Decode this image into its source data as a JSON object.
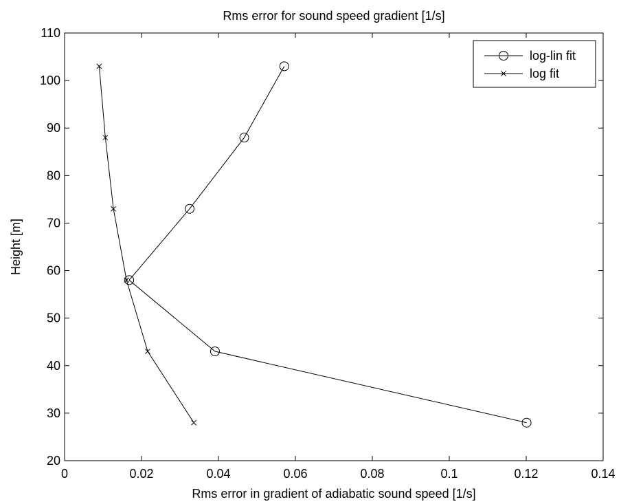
{
  "chart_data": {
    "type": "line",
    "title": "Rms error for sound speed gradient [1/s]",
    "xlabel": "Rms error in gradient of adiabatic sound speed [1/s]",
    "ylabel": "Height [m]",
    "xlim": [
      0,
      0.14
    ],
    "ylim": [
      20,
      110
    ],
    "xticks": [
      0,
      0.02,
      0.04,
      0.06,
      0.08,
      0.1,
      0.12,
      0.14
    ],
    "xtick_labels": [
      "0",
      "0.02",
      "0.04",
      "0.06",
      "0.08",
      "0.1",
      "0.12",
      "0.14"
    ],
    "yticks": [
      20,
      30,
      40,
      50,
      60,
      70,
      80,
      90,
      100,
      110
    ],
    "ytick_labels": [
      "20",
      "30",
      "40",
      "50",
      "60",
      "70",
      "80",
      "90",
      "100",
      "110"
    ],
    "grid": false,
    "legend_position": "top-right",
    "series": [
      {
        "name": "log-lin fit",
        "marker": "circle",
        "color": "#000000",
        "points": [
          {
            "x": 0.1201,
            "y": 28
          },
          {
            "x": 0.0391,
            "y": 43
          },
          {
            "x": 0.0168,
            "y": 58
          },
          {
            "x": 0.0325,
            "y": 73
          },
          {
            "x": 0.0467,
            "y": 88
          },
          {
            "x": 0.0571,
            "y": 103
          }
        ]
      },
      {
        "name": "log fit",
        "marker": "x",
        "color": "#000000",
        "points": [
          {
            "x": 0.0336,
            "y": 28
          },
          {
            "x": 0.0216,
            "y": 43
          },
          {
            "x": 0.0161,
            "y": 58
          },
          {
            "x": 0.0127,
            "y": 73
          },
          {
            "x": 0.0106,
            "y": 88
          },
          {
            "x": 0.009,
            "y": 103
          }
        ]
      }
    ]
  }
}
